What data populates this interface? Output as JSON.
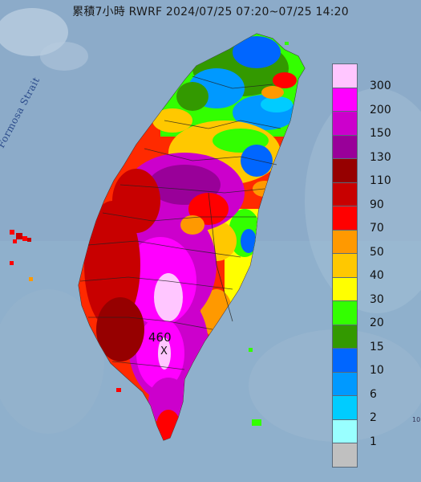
{
  "title": "累積7小時 RWRF 2024/07/25 07:20~07/25 14:20",
  "strait_label": "Formosa Strait",
  "max_label": "460",
  "max_marker": "X",
  "edge_note": "10",
  "legend": {
    "levels": [
      {
        "label": "300",
        "color": "#ffc6ff"
      },
      {
        "label": "200",
        "color": "#ff00ff"
      },
      {
        "label": "150",
        "color": "#cc00cc"
      },
      {
        "label": "130",
        "color": "#990099"
      },
      {
        "label": "110",
        "color": "#960000"
      },
      {
        "label": "90",
        "color": "#c80000"
      },
      {
        "label": "70",
        "color": "#ff0000"
      },
      {
        "label": "50",
        "color": "#ff9900"
      },
      {
        "label": "40",
        "color": "#ffc800"
      },
      {
        "label": "30",
        "color": "#ffff00"
      },
      {
        "label": "20",
        "color": "#33ff00"
      },
      {
        "label": "15",
        "color": "#339900"
      },
      {
        "label": "10",
        "color": "#0066ff"
      },
      {
        "label": "6",
        "color": "#0099ff"
      },
      {
        "label": "2",
        "color": "#00ccff"
      },
      {
        "label": "1",
        "color": "#99ffff"
      },
      {
        "label": "",
        "color": "#c0c0c0"
      }
    ]
  }
}
